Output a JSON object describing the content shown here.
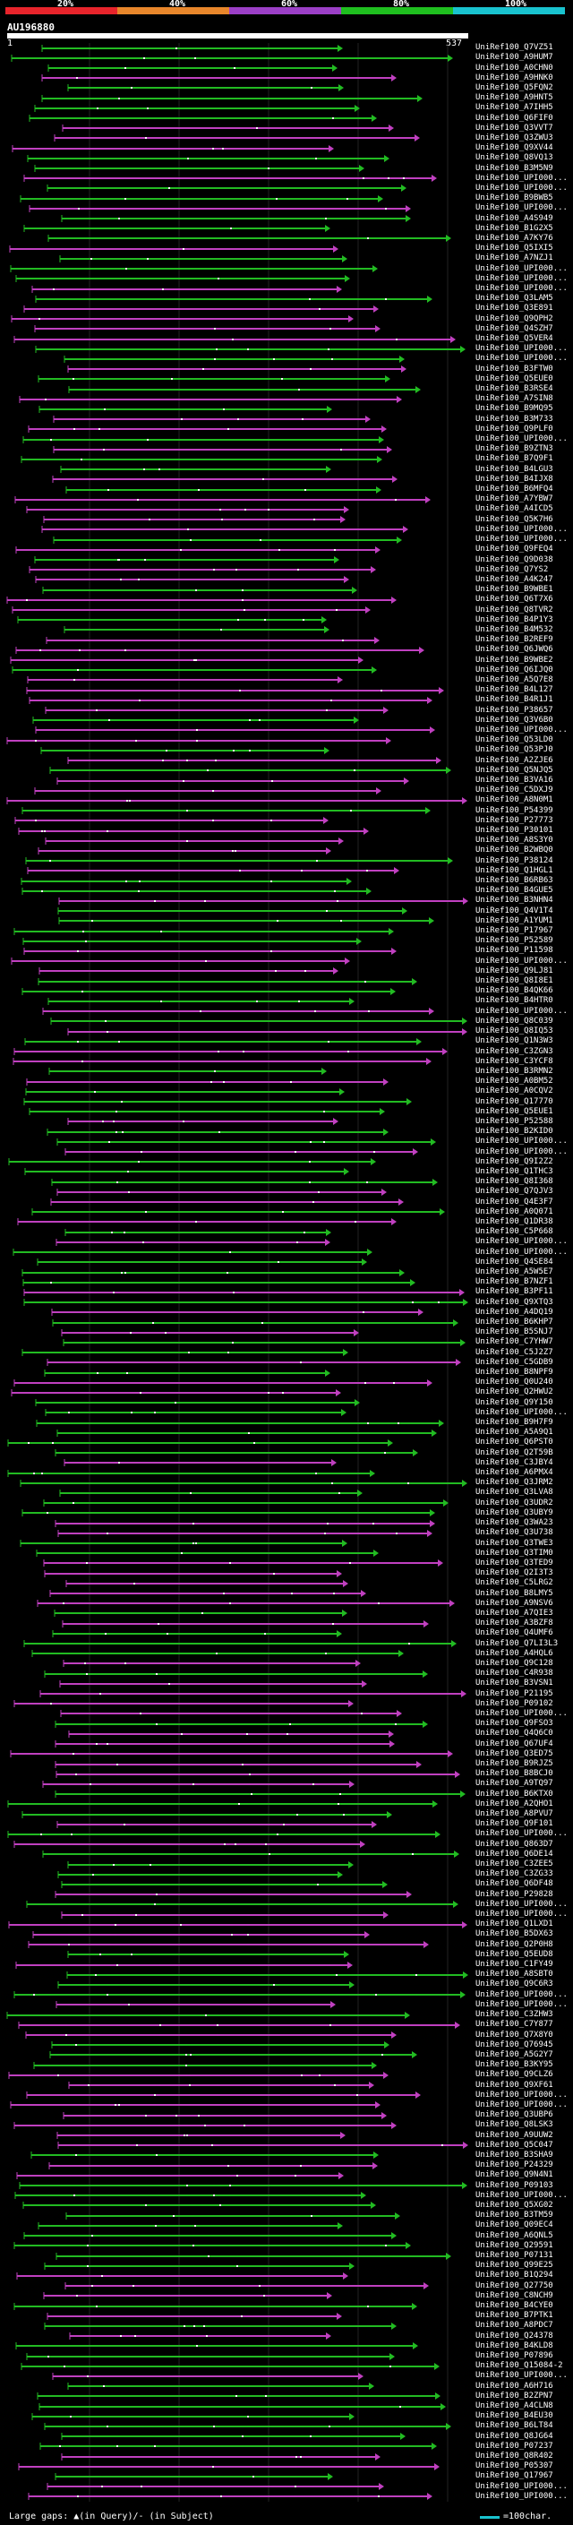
{
  "scale": {
    "labels": [
      "20%",
      "40%",
      "60%",
      "80%",
      "100%"
    ],
    "colors": [
      "#e8242b",
      "#e8862b",
      "#9b3fc6",
      "#1fbf1f",
      "#19c3cf"
    ]
  },
  "query": {
    "name": "AU196880",
    "start": "1",
    "end": "537"
  },
  "hits": [
    "UniRef100_Q7VZ51",
    "UniRef100_A9HUM7",
    "UniRef100_A0CHN0",
    "UniRef100_A9HNK0",
    "UniRef100_Q5FQN2",
    "UniRef100_A9HNT5",
    "UniRef100_A7IHH5",
    "UniRef100_Q6FIF0",
    "UniRef100_Q3VVT7",
    "UniRef100_Q3ZWU3",
    "UniRef100_Q9XV44",
    "UniRef100_Q8VQ13",
    "UniRef100_B3M5N9",
    "UniRef100_UPI000...",
    "UniRef100_UPI000...",
    "UniRef100_B9BWB5",
    "UniRef100_UPI000...",
    "UniRef100_A4S949",
    "UniRef100_B1G2X5",
    "UniRef100_A7KY76",
    "UniRef100_Q5IXI5",
    "UniRef100_A7NZJ1",
    "UniRef100_UPI000...",
    "UniRef100_UPI000...",
    "UniRef100_UPI000...",
    "UniRef100_Q3LAM5",
    "UniRef100_Q3E891",
    "UniRef100_Q9QPH2",
    "UniRef100_Q4SZH7",
    "UniRef100_Q5VER4",
    "UniRef100_UPI000...",
    "UniRef100_UPI000...",
    "UniRef100_B3FTW0",
    "UniRef100_Q5EUE0",
    "UniRef100_B3RSE4",
    "UniRef100_A7SIN8",
    "UniRef100_B9MQ95",
    "UniRef100_B3M733",
    "UniRef100_Q9PLF0",
    "UniRef100_UPI000...",
    "UniRef100_B9ZTN3",
    "UniRef100_B7Q9F1",
    "UniRef100_B4LGU3",
    "UniRef100_B4IJX8",
    "UniRef100_B6MFQ4",
    "UniRef100_A7YBW7",
    "UniRef100_A4ICD5",
    "UniRef100_Q5K7H6",
    "UniRef100_UPI000...",
    "UniRef100_UPI000...",
    "UniRef100_Q9FEQ4",
    "UniRef100_Q9D038",
    "UniRef100_Q7YS2",
    "UniRef100_A4K247",
    "UniRef100_B9WBE1",
    "UniRef100_Q6T7X6",
    "UniRef100_Q8TVR2",
    "UniRef100_B4P1Y3",
    "UniRef100_B4M532",
    "UniRef100_B2REF9",
    "UniRef100_Q6JWQ6",
    "UniRef100_B9WBE2",
    "UniRef100_Q6IJQ0",
    "UniRef100_A5Q7E8",
    "UniRef100_B4L127",
    "UniRef100_B4R1J1",
    "UniRef100_P38657",
    "UniRef100_Q3V6B0",
    "UniRef100_UPI000...",
    "UniRef100_Q53LD0",
    "UniRef100_Q53PJ0",
    "UniRef100_A2ZJE6",
    "UniRef100_Q5NJQ5",
    "UniRef100_B3VA16",
    "UniRef100_C5DXJ9",
    "UniRef100_A8N0M1",
    "UniRef100_P54399",
    "UniRef100_P27773",
    "UniRef100_P30101",
    "UniRef100_A8S3Y0",
    "UniRef100_B2WBQ0",
    "UniRef100_P38124",
    "UniRef100_Q1HGL1",
    "UniRef100_B6RB63",
    "UniRef100_B4GUE5",
    "UniRef100_B3NHN4",
    "UniRef100_Q4V1T4",
    "UniRef100_A1YUM1",
    "UniRef100_P17967",
    "UniRef100_P52589",
    "UniRef100_P11598",
    "UniRef100_UPI000...",
    "UniRef100_Q9LJ81",
    "UniRef100_Q8I8E1",
    "UniRef100_B4QK66",
    "UniRef100_B4HTR0",
    "UniRef100_UPI000...",
    "UniRef100_Q8C039",
    "UniRef100_Q8IQ53",
    "UniRef100_Q1N3W3",
    "UniRef100_C3ZGN3",
    "UniRef100_C3YCF8",
    "UniRef100_B3RMN2",
    "UniRef100_A0BM52",
    "UniRef100_A0CQV2",
    "UniRef100_Q17770",
    "UniRef100_Q5EUE1",
    "UniRef100_P52588",
    "UniRef100_B2KID0",
    "UniRef100_UPI000...",
    "UniRef100_UPI000...",
    "UniRef100_Q9I2Z2",
    "UniRef100_Q1THC3",
    "UniRef100_Q8I368",
    "UniRef100_Q7QJV3",
    "UniRef100_Q4E3F7",
    "UniRef100_A0Q071",
    "UniRef100_Q1DR38",
    "UniRef100_C5P668",
    "UniRef100_UPI000...",
    "UniRef100_UPI000...",
    "UniRef100_Q4SE84",
    "UniRef100_A5W5E7",
    "UniRef100_B7NZF1",
    "UniRef100_B3PF11",
    "UniRef100_Q9XTQ3",
    "UniRef100_A4DQ19",
    "UniRef100_B6KHP7",
    "UniRef100_B5SNJ7",
    "UniRef100_C7YHW7",
    "UniRef100_C5J2Z7",
    "UniRef100_C5GDB9",
    "UniRef100_B8NPF9",
    "UniRef100_Q0U240",
    "UniRef100_Q2HWU2",
    "UniRef100_Q9Y150",
    "UniRef100_UPI000...",
    "UniRef100_B9H7F9",
    "UniRef100_A5A9Q1",
    "UniRef100_Q6PST0",
    "UniRef100_Q2T59B",
    "UniRef100_C3JBY4",
    "UniRef100_A6PMX4",
    "UniRef100_Q3JRM2",
    "UniRef100_Q3LVA8",
    "UniRef100_Q3UDR2",
    "UniRef100_Q3UBY9",
    "UniRef100_Q3WA23",
    "UniRef100_Q3U738",
    "UniRef100_Q3TWE3",
    "UniRef100_Q3TIM0",
    "UniRef100_Q3TED9",
    "UniRef100_Q2I3T3",
    "UniRef100_C5LRG2",
    "UniRef100_B8LMY5",
    "UniRef100_A9NSV6",
    "UniRef100_A7QIE3",
    "UniRef100_A3BZF8",
    "UniRef100_Q4UMF6",
    "UniRef100_Q7LI3L3",
    "UniRef100_A4HQL6",
    "UniRef100_Q9C128",
    "UniRef100_C4R938",
    "UniRef100_B3VSN1",
    "UniRef100_P21195",
    "UniRef100_P09102",
    "UniRef100_UPI000...",
    "UniRef100_Q9FSO3",
    "UniRef100_Q4Q6C0",
    "UniRef100_Q67UF4",
    "UniRef100_Q3ED75",
    "UniRef100_B9RJZ5",
    "UniRef100_B8BCJ0",
    "UniRef100_A9TQ97",
    "UniRef100_B6KTX0",
    "UniRef100_A2QHO1",
    "UniRef100_A8PVU7",
    "UniRef100_Q9F101",
    "UniRef100_UPI000...",
    "UniRef100_Q863D7",
    "UniRef100_Q6DE14",
    "UniRef100_C3ZEE5",
    "UniRef100_C3ZG33",
    "UniRef100_Q6DF48",
    "UniRef100_P29828",
    "UniRef100_UPI000...",
    "UniRef100_UPI000...",
    "UniRef100_Q1LXD1",
    "UniRef100_B5DX63",
    "UniRef100_Q2P0H8",
    "UniRef100_Q5EUD8",
    "UniRef100_C1FY49",
    "UniRef100_A8SBT0",
    "UniRef100_Q9C6R3",
    "UniRef100_UPI000...",
    "UniRef100_UPI000...",
    "UniRef100_C3ZHW3",
    "UniRef100_C7Y877",
    "UniRef100_Q7X8Y0",
    "UniRef100_Q76945",
    "UniRef100_A5G2Y7",
    "UniRef100_B3KY95",
    "UniRef100_Q9CLZ6",
    "UniRef100_Q9XF61",
    "UniRef100_UPI000...",
    "UniRef100_UPI000...",
    "UniRef100_Q3UBP6",
    "UniRef100_Q8LSK3",
    "UniRef100_A9UUW2",
    "UniRef100_Q5C047",
    "UniRef100_B3SHA9",
    "UniRef100_P24329",
    "UniRef100_Q9N4N1",
    "UniRef100_P09103",
    "UniRef100_UPI000...",
    "UniRef100_Q5XG02",
    "UniRef100_B3TM59",
    "UniRef100_Q09EC4",
    "UniRef100_A6QNL5",
    "UniRef100_Q29591",
    "UniRef100_P07131",
    "UniRef100_Q99E25",
    "UniRef100_B1Q294",
    "UniRef100_Q27750",
    "UniRef100_C8NCH9",
    "UniRef100_B4CYE0",
    "UniRef100_B7PTK1",
    "UniRef100_A8PDC7",
    "UniRef100_Q24378",
    "UniRef100_B4KLD8",
    "UniRef100_P07896",
    "UniRef100_Q15084-2",
    "UniRef100_UPI000...",
    "UniRef100_A6H716",
    "UniRef100_B2ZPN7",
    "UniRef100_A4CLN8",
    "UniRef100_B4EU30",
    "UniRef100_B6LT84",
    "UniRef100_Q8JG64",
    "UniRef100_P07237",
    "UniRef100_Q8R402",
    "UniRef100_P05307",
    "UniRef100_Q17967",
    "UniRef100_UPI000...",
    "UniRef100_UPI000..."
  ],
  "footer": {
    "gaps_legend": "Large gaps: ▲(in Query)/- (in Subject)",
    "scale_legend": "=100char."
  }
}
